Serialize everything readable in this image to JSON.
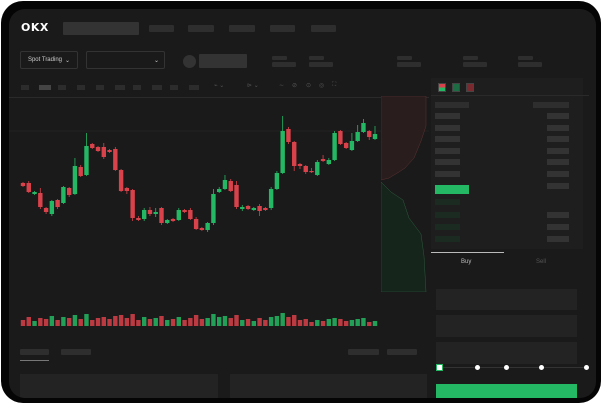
{
  "header": {
    "logo": "OKX"
  },
  "market_bar": {
    "mode_label": "Spot Trading",
    "mode_chevron": "chevron-down-icon",
    "pair_chevron": "chevron-down-icon"
  },
  "order_form": {
    "tabs": [
      "Buy",
      "Sell"
    ],
    "active_tab": "Buy",
    "slider_percent": 0
  },
  "colors": {
    "up": "#25b864",
    "down": "#d9424a",
    "background": "#1a1a1a"
  },
  "chart_data": {
    "type": "candlestick",
    "ohlc": [
      [
        58,
        59,
        54,
        55
      ],
      [
        58,
        60,
        48,
        49
      ],
      [
        47,
        50,
        46,
        49
      ],
      [
        48,
        53,
        32,
        34
      ],
      [
        33,
        34,
        27,
        29
      ],
      [
        27,
        41,
        25,
        40
      ],
      [
        41,
        42,
        32,
        34
      ],
      [
        38,
        55,
        37,
        54
      ],
      [
        53,
        54,
        44,
        46
      ],
      [
        47,
        83,
        46,
        75
      ],
      [
        74,
        76,
        64,
        65
      ],
      [
        66,
        108,
        65,
        95
      ],
      [
        97,
        98,
        92,
        93
      ],
      [
        94,
        95,
        89,
        90
      ],
      [
        94,
        98,
        82,
        84
      ],
      [
        91,
        92,
        88,
        89
      ],
      [
        92,
        94,
        70,
        71
      ],
      [
        71,
        72,
        49,
        50
      ],
      [
        53,
        54,
        47,
        50
      ],
      [
        51,
        52,
        20,
        23
      ],
      [
        23,
        25,
        20,
        21
      ],
      [
        22,
        33,
        20,
        31
      ],
      [
        31,
        34,
        25,
        27
      ],
      [
        27,
        33,
        24,
        29
      ],
      [
        33,
        34,
        16,
        18
      ],
      [
        18,
        22,
        17,
        21
      ],
      [
        22,
        23,
        19,
        20
      ],
      [
        21,
        33,
        20,
        31
      ],
      [
        31,
        32,
        28,
        29
      ],
      [
        31,
        33,
        21,
        22
      ],
      [
        22,
        24,
        11,
        12
      ],
      [
        13,
        14,
        10,
        11
      ],
      [
        11,
        19,
        9,
        18
      ],
      [
        18,
        52,
        16,
        47
      ],
      [
        49,
        54,
        48,
        52
      ],
      [
        52,
        66,
        51,
        61
      ],
      [
        60,
        62,
        49,
        50
      ],
      [
        56,
        60,
        32,
        34
      ],
      [
        32,
        36,
        30,
        34
      ],
      [
        35,
        36,
        31,
        32
      ],
      [
        31,
        34,
        30,
        33
      ],
      [
        35,
        37,
        25,
        30
      ],
      [
        33,
        34,
        30,
        31
      ],
      [
        33,
        54,
        31,
        52
      ],
      [
        52,
        70,
        51,
        68
      ],
      [
        68,
        125,
        67,
        110
      ],
      [
        112,
        114,
        97,
        99
      ],
      [
        99,
        100,
        70,
        75
      ],
      [
        77,
        78,
        72,
        75
      ],
      [
        75,
        76,
        67,
        69
      ],
      [
        70,
        73,
        68,
        69
      ],
      [
        66,
        81,
        65,
        79
      ],
      [
        82,
        86,
        79,
        80
      ],
      [
        77,
        83,
        76,
        81
      ],
      [
        81,
        110,
        80,
        108
      ],
      [
        110,
        111,
        96,
        97
      ],
      [
        98,
        99,
        92,
        93
      ],
      [
        91,
        108,
        90,
        100
      ],
      [
        100,
        116,
        99,
        109
      ],
      [
        109,
        122,
        108,
        118
      ],
      [
        110,
        111,
        101,
        104
      ],
      [
        102,
        115,
        101,
        107
      ]
    ],
    "volume": [
      6,
      9,
      5,
      8,
      7,
      10,
      6,
      9,
      8,
      11,
      7,
      12,
      6,
      8,
      9,
      7,
      10,
      11,
      8,
      12,
      6,
      9,
      7,
      8,
      10,
      6,
      7,
      9,
      6,
      8,
      11,
      7,
      8,
      12,
      9,
      10,
      8,
      11,
      6,
      7,
      5,
      8,
      6,
      9,
      10,
      13,
      9,
      11,
      6,
      7,
      4,
      6,
      5,
      7,
      8,
      7,
      5,
      6,
      7,
      8,
      4,
      5
    ],
    "ylim": [
      0,
      140
    ]
  }
}
